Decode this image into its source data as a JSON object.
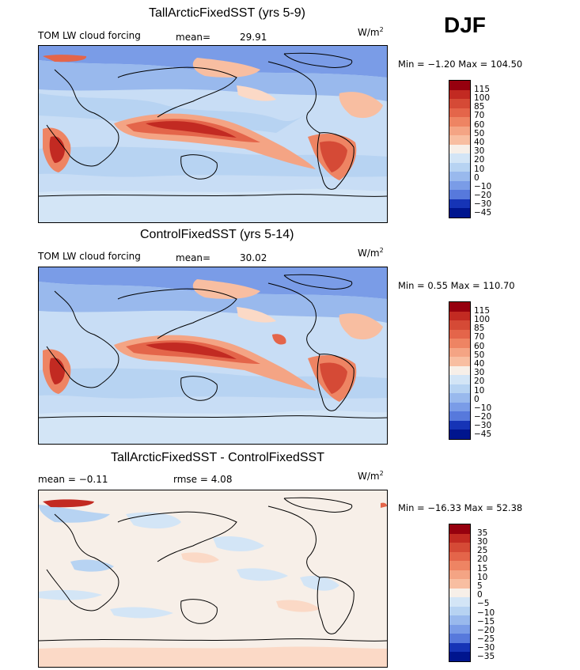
{
  "season": "DJF",
  "units_base": "W/m",
  "units_exp": "2",
  "colors": {
    "warm": [
      "#fbd9c6",
      "#f8bea1",
      "#f4a484",
      "#ee8463",
      "#e4654a",
      "#d54a36",
      "#c22a22",
      "#96000e"
    ],
    "neutral": "#f7efe8",
    "cool": [
      "#d3e5f6",
      "#b7d3f2",
      "#99b9ed",
      "#7a9ce7",
      "#5779dc",
      "#3658cc",
      "#1634b6",
      "#00158e"
    ],
    "land": "#6a93e4",
    "ocean": "#c8ddf5"
  },
  "chart_data": [
    {
      "type": "heatmap",
      "title": "TallArcticFixedSST (yrs 5-9)",
      "subtitle": "TOM LW cloud forcing",
      "mean_label": "mean=",
      "mean_value": "29.91",
      "min_max": "Min =   −1.20 Max = 104.50",
      "colorbar_ticks": [
        "115",
        "100",
        "85",
        "70",
        "60",
        "50",
        "40",
        "30",
        "20",
        "10",
        "0",
        "−10",
        "−20",
        "−30",
        "−45"
      ]
    },
    {
      "type": "heatmap",
      "title": "ControlFixedSST (yrs 5-14)",
      "subtitle": "TOM LW cloud forcing",
      "mean_label": "mean=",
      "mean_value": "30.02",
      "min_max": "Min =    0.55 Max = 110.70",
      "colorbar_ticks": [
        "115",
        "100",
        "85",
        "70",
        "60",
        "50",
        "40",
        "30",
        "20",
        "10",
        "0",
        "−10",
        "−20",
        "−30",
        "−45"
      ]
    },
    {
      "type": "heatmap",
      "title": "TallArcticFixedSST - ControlFixedSST",
      "mean_text": "mean =   −0.11",
      "rmse_text": "rmse =     4.08",
      "min_max": "Min = −16.33 Max =  52.38",
      "colorbar_ticks": [
        "35",
        "30",
        "25",
        "20",
        "15",
        "10",
        "5",
        "0",
        "−5",
        "−10",
        "−15",
        "−20",
        "−25",
        "−30",
        "−35"
      ]
    }
  ]
}
